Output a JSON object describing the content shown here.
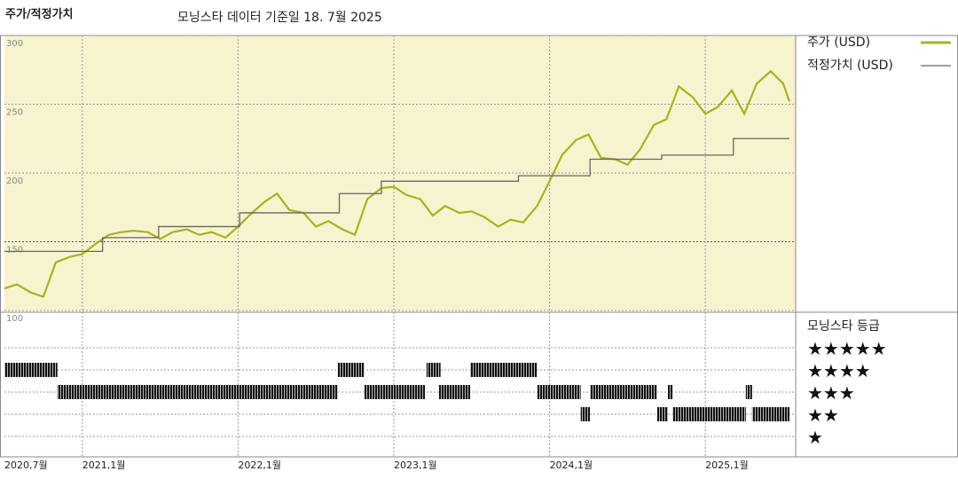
{
  "chart_data": {
    "type": "line",
    "title": "주가/적정가치",
    "subtitle": "모닝스타 데이터 기준일 18. 7월 2025",
    "xlim": [
      2020.5,
      2025.58
    ],
    "xticks": [
      {
        "value": 2020.5,
        "label": "2020,7월"
      },
      {
        "value": 2021,
        "label": "2021,1월"
      },
      {
        "value": 2022,
        "label": "2022,1월"
      },
      {
        "value": 2023,
        "label": "2023,1월"
      },
      {
        "value": 2024,
        "label": "2024,1월"
      },
      {
        "value": 2025,
        "label": "2025,1월"
      }
    ],
    "ylim": [
      100,
      300
    ],
    "yticks": [
      100,
      150,
      200,
      250,
      300
    ],
    "grid": true,
    "background": "#f7f3cf",
    "series": [
      {
        "name": "주가 (USD)",
        "color": "#a9b21f",
        "step": false,
        "x": [
          2020.5,
          2020.58,
          2020.67,
          2020.75,
          2020.83,
          2020.92,
          2021,
          2021.08,
          2021.17,
          2021.25,
          2021.33,
          2021.42,
          2021.5,
          2021.58,
          2021.67,
          2021.75,
          2021.83,
          2021.92,
          2022,
          2022.08,
          2022.17,
          2022.25,
          2022.33,
          2022.42,
          2022.5,
          2022.58,
          2022.67,
          2022.75,
          2022.83,
          2022.92,
          2023,
          2023.08,
          2023.17,
          2023.25,
          2023.33,
          2023.42,
          2023.5,
          2023.58,
          2023.67,
          2023.75,
          2023.83,
          2023.92,
          2024,
          2024.08,
          2024.17,
          2024.25,
          2024.33,
          2024.42,
          2024.5,
          2024.58,
          2024.67,
          2024.75,
          2024.83,
          2024.92,
          2025,
          2025.08,
          2025.17,
          2025.25,
          2025.33,
          2025.42,
          2025.5,
          2025.54
        ],
        "values": [
          116,
          119,
          113,
          110,
          135,
          139,
          141,
          148,
          155,
          157,
          158,
          157,
          152,
          157,
          159,
          155,
          157,
          153,
          161,
          170,
          179,
          185,
          173,
          171,
          161,
          165,
          159,
          155,
          181,
          189,
          190,
          184,
          181,
          169,
          176,
          171,
          172,
          168,
          161,
          166,
          164,
          176,
          194,
          213,
          224,
          228,
          211,
          210,
          206,
          217,
          235,
          239,
          263,
          255,
          243,
          248,
          260,
          243,
          265,
          274,
          265,
          252
        ]
      },
      {
        "name": "적정가치 (USD)",
        "color": "#666666",
        "step": true,
        "x": [
          2020.5,
          2021.13,
          2021.49,
          2022.01,
          2022.65,
          2022.92,
          2023.8,
          2024.26,
          2024.72,
          2025.18,
          2025.54
        ],
        "values": [
          143,
          153,
          161,
          171,
          185,
          194,
          198,
          210,
          213,
          225,
          225
        ]
      }
    ],
    "rating_title": "모닝스타 등급",
    "rating_levels": [
      {
        "value": 5,
        "label": "★★★★★"
      },
      {
        "value": 4,
        "label": "★★★★"
      },
      {
        "value": 3,
        "label": "★★★"
      },
      {
        "value": 2,
        "label": "★★"
      },
      {
        "value": 1,
        "label": "★"
      }
    ],
    "ratings": [
      {
        "start": 2020.5,
        "end": 2020.84,
        "stars": 4
      },
      {
        "start": 2020.84,
        "end": 2022.64,
        "stars": 3
      },
      {
        "start": 2022.64,
        "end": 2022.81,
        "stars": 4
      },
      {
        "start": 2022.81,
        "end": 2023.2,
        "stars": 3
      },
      {
        "start": 2023.21,
        "end": 2023.3,
        "stars": 4
      },
      {
        "start": 2023.29,
        "end": 2023.49,
        "stars": 3
      },
      {
        "start": 2023.49,
        "end": 2023.92,
        "stars": 4
      },
      {
        "start": 2023.92,
        "end": 2024.2,
        "stars": 3
      },
      {
        "start": 2024.2,
        "end": 2024.26,
        "stars": 2
      },
      {
        "start": 2024.26,
        "end": 2024.69,
        "stars": 3
      },
      {
        "start": 2024.69,
        "end": 2024.76,
        "stars": 2
      },
      {
        "start": 2024.76,
        "end": 2024.79,
        "stars": 3
      },
      {
        "start": 2024.79,
        "end": 2025.26,
        "stars": 2
      },
      {
        "start": 2025.26,
        "end": 2025.3,
        "stars": 3
      },
      {
        "start": 2025.3,
        "end": 2025.54,
        "stars": 2
      }
    ]
  }
}
